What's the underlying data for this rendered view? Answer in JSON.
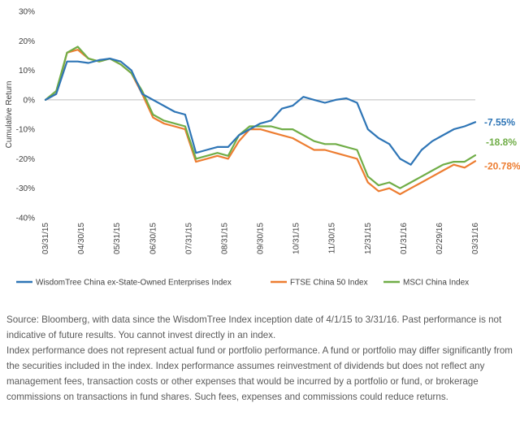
{
  "chart_data": {
    "type": "line",
    "ylabel": "Cumulative Return",
    "xlabel": "",
    "ylim": [
      -0.4,
      0.3
    ],
    "y_ticks": [
      "30%",
      "20%",
      "10%",
      "0%",
      "-10%",
      "-20%",
      "-30%",
      "-40%"
    ],
    "x_ticks": [
      "03/31/15",
      "04/30/15",
      "05/31/15",
      "06/30/15",
      "07/31/15",
      "08/31/15",
      "09/30/15",
      "10/31/15",
      "11/30/15",
      "12/31/15",
      "01/31/16",
      "02/29/16",
      "03/31/16"
    ],
    "grid": false,
    "legend_position": "bottom",
    "series": [
      {
        "name": "WisdomTree China ex-State-Owned Enterprises Index",
        "color": "#2E75B6",
        "end_label": "-7.55%",
        "values": [
          0.0,
          0.02,
          0.13,
          0.13,
          0.125,
          0.135,
          0.14,
          0.13,
          0.1,
          0.02,
          0.0,
          -0.02,
          -0.04,
          -0.05,
          -0.18,
          -0.17,
          -0.16,
          -0.16,
          -0.12,
          -0.1,
          -0.08,
          -0.07,
          -0.03,
          -0.02,
          0.01,
          0.0,
          -0.01,
          0.0,
          0.005,
          -0.01,
          -0.1,
          -0.13,
          -0.15,
          -0.2,
          -0.22,
          -0.17,
          -0.14,
          -0.12,
          -0.1,
          -0.09,
          -0.0755
        ]
      },
      {
        "name": "FTSE China 50 Index",
        "color": "#ED7D31",
        "end_label": "-20.78%",
        "values": [
          0.0,
          0.02,
          0.16,
          0.17,
          0.14,
          0.13,
          0.14,
          0.12,
          0.09,
          0.02,
          -0.06,
          -0.08,
          -0.09,
          -0.1,
          -0.21,
          -0.2,
          -0.19,
          -0.2,
          -0.14,
          -0.1,
          -0.1,
          -0.11,
          -0.12,
          -0.13,
          -0.15,
          -0.17,
          -0.17,
          -0.18,
          -0.19,
          -0.2,
          -0.28,
          -0.31,
          -0.3,
          -0.32,
          -0.3,
          -0.28,
          -0.26,
          -0.24,
          -0.22,
          -0.23,
          -0.2078
        ]
      },
      {
        "name": "MSCI China Index",
        "color": "#70AD47",
        "end_label": "-18.8%",
        "values": [
          0.0,
          0.03,
          0.16,
          0.18,
          0.14,
          0.13,
          0.14,
          0.12,
          0.09,
          0.03,
          -0.05,
          -0.07,
          -0.08,
          -0.09,
          -0.2,
          -0.19,
          -0.18,
          -0.19,
          -0.12,
          -0.09,
          -0.09,
          -0.09,
          -0.1,
          -0.1,
          -0.12,
          -0.14,
          -0.15,
          -0.15,
          -0.16,
          -0.17,
          -0.26,
          -0.29,
          -0.28,
          -0.3,
          -0.28,
          -0.26,
          -0.24,
          -0.22,
          -0.21,
          -0.21,
          -0.188
        ]
      }
    ]
  },
  "source_paragraphs": [
    "Source: Bloomberg, with data since the WisdomTree Index inception date of 4/1/15 to 3/31/16. Past performance is not indicative of future results. You cannot invest directly in an index.",
    "Index performance does not represent actual fund or portfolio performance. A fund or portfolio may differ significantly from the securities included in the index. Index performance assumes reinvestment of dividends but does not reflect any management fees, transaction costs or other expenses that would be incurred by a portfolio or fund, or brokerage commissions on transactions in fund shares. Such fees, expenses and commissions could reduce returns."
  ]
}
